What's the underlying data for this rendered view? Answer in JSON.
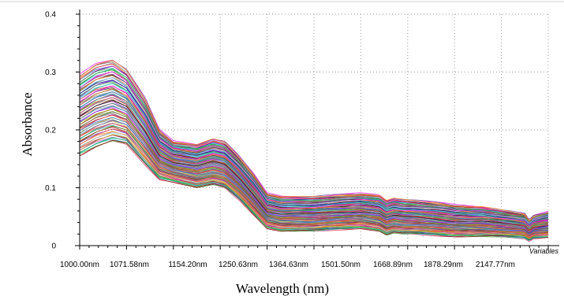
{
  "chart_data": {
    "type": "line",
    "title": "",
    "xlabel": "Wavelength (nm)",
    "ylabel": "Absorbance",
    "x_corner_label": "Variables",
    "x_tick_labels": [
      "1000.00nm",
      "1071.58nm",
      "1154.20nm",
      "1250.63nm",
      "1364.63nm",
      "1501.50nm",
      "1668.89nm",
      "1878.29nm",
      "2147.77nm"
    ],
    "y_ticks": [
      0,
      0.1,
      0.2,
      0.3,
      0.4
    ],
    "y_tick_labels": [
      "0",
      "0.1",
      "0.2",
      "0.3",
      "0.4"
    ],
    "ylim": [
      0,
      0.4
    ],
    "grid": true,
    "legend": "none",
    "n_spectra": 100,
    "representative_spectra": {
      "x_index": [
        0,
        0.35,
        0.7,
        1.0,
        1.4,
        1.7,
        2.0,
        2.5,
        2.85,
        3.1,
        3.4,
        3.7,
        4.0,
        4.3,
        5.0,
        5.5,
        6.0,
        6.4,
        6.55,
        6.7,
        6.9,
        7.2,
        7.6,
        8.0,
        8.3,
        8.6,
        9.0,
        9.5,
        9.6,
        9.65,
        9.7,
        10.0
      ],
      "upper": [
        0.295,
        0.315,
        0.322,
        0.305,
        0.255,
        0.2,
        0.18,
        0.175,
        0.185,
        0.18,
        0.155,
        0.125,
        0.09,
        0.085,
        0.085,
        0.088,
        0.09,
        0.087,
        0.078,
        0.082,
        0.08,
        0.078,
        0.075,
        0.07,
        0.068,
        0.067,
        0.062,
        0.055,
        0.043,
        0.05,
        0.052,
        0.058
      ],
      "lower": [
        0.155,
        0.17,
        0.18,
        0.175,
        0.14,
        0.115,
        0.11,
        0.1,
        0.105,
        0.1,
        0.08,
        0.055,
        0.03,
        0.025,
        0.025,
        0.028,
        0.03,
        0.025,
        0.018,
        0.022,
        0.02,
        0.02,
        0.018,
        0.016,
        0.016,
        0.016,
        0.015,
        0.013,
        0.008,
        0.012,
        0.013,
        0.015
      ]
    },
    "series_colors": [
      "#e6194b",
      "#3cb44b",
      "#4363d8",
      "#f58231",
      "#911eb4",
      "#42d4f4",
      "#f032e6",
      "#469990",
      "#9a6324",
      "#800000",
      "#808000",
      "#000075",
      "#a9a9a9",
      "#000000",
      "#2ca02c",
      "#d62728",
      "#1f77b4",
      "#ff7f0e",
      "#8c564b",
      "#17becf",
      "#bcbd22",
      "#7f7f7f",
      "#6a3d9a",
      "#b15928",
      "#33a02c",
      "#e31a1c",
      "#1f78b4",
      "#ff00ff",
      "#00aa88",
      "#aa00ff",
      "#87ceeb",
      "#ff6347"
    ]
  }
}
